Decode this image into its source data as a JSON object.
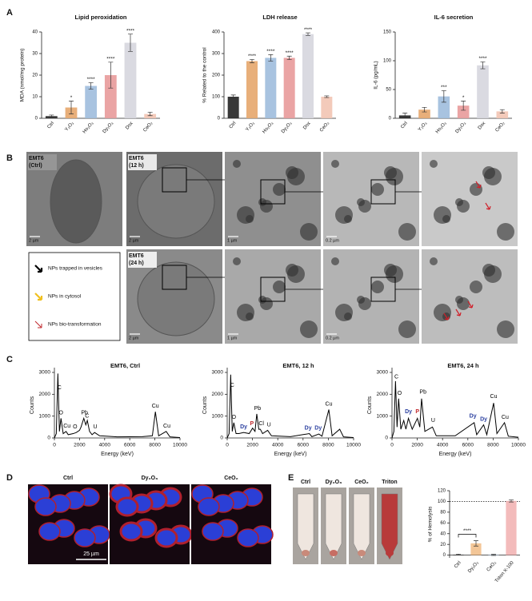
{
  "panel_labels": [
    "A",
    "B",
    "C",
    "D",
    "E"
  ],
  "micrographs": {
    "labels": [
      [
        "EMT6",
        "(Ctrl)"
      ],
      [
        "EMT6",
        "(12 h)"
      ],
      [
        "EMT6",
        "(24 h)"
      ]
    ],
    "scale_bars": [
      "2 µm",
      "2 µm",
      "1 µm",
      "0.2 µm",
      "2 µm",
      "1 µm",
      "0.2 µm"
    ],
    "legend": [
      "NPs trapped in vesicles",
      "NPs in cytosol",
      "NPs bio-transformation"
    ]
  },
  "fluorescence": {
    "labels": [
      "Ctrl",
      "Dy₂O₃",
      "CeO₂"
    ],
    "scale_bar": "25 µm"
  },
  "hemolysis_tubes": {
    "labels": [
      "Ctrl",
      "Dy₂O₃",
      "CeO₂",
      "Triton"
    ]
  },
  "chart_data": [
    {
      "type": "bar",
      "title": "Lipid peroxidation",
      "y_label": "MDA (nmol/mg protein)",
      "categories": [
        "Ctrl",
        "Y₂O₃",
        "Ho₂O₃",
        "Dy₂O₃",
        "Dox",
        "CeO₂"
      ],
      "values": [
        1,
        5,
        15,
        20,
        35,
        2
      ],
      "errors": [
        0.5,
        3,
        1.5,
        6,
        4,
        0.8
      ],
      "significance": [
        null,
        "*",
        "****",
        "****",
        "****",
        null
      ],
      "colors": [
        "#222222",
        "#e6a66c",
        "#9fbcdd",
        "#e89a9a",
        "#d6d6de",
        "#f2c4b3"
      ],
      "ylim": [
        0,
        40
      ],
      "yticks": [
        0,
        10,
        20,
        30,
        40
      ]
    },
    {
      "type": "bar",
      "title": "LDH release",
      "y_label": "% Related to the control",
      "categories": [
        "Ctrl",
        "Y₂O₃",
        "Ho₂O₃",
        "Dy₂O₃",
        "Dox",
        "CeO₂"
      ],
      "values": [
        100,
        265,
        280,
        280,
        390,
        100
      ],
      "errors": [
        8,
        8,
        15,
        8,
        6,
        4
      ],
      "significance": [
        null,
        "****",
        "****",
        "****",
        "****",
        null
      ],
      "colors": [
        "#222222",
        "#e6a66c",
        "#9fbcdd",
        "#e89a9a",
        "#d6d6de",
        "#f2c4b3"
      ],
      "ylim": [
        0,
        400
      ],
      "yticks": [
        0,
        100,
        200,
        300,
        400
      ]
    },
    {
      "type": "bar",
      "title": "IL-6 secretion",
      "y_label": "IL-6 (pg/mL)",
      "categories": [
        "Ctrl",
        "Y₂O₃",
        "Ho₂O₃",
        "Dy₂O₃",
        "Dox",
        "CeO₂"
      ],
      "values": [
        5,
        15,
        38,
        22,
        92,
        12
      ],
      "errors": [
        4,
        4,
        10,
        8,
        6,
        3
      ],
      "significance": [
        null,
        null,
        "***",
        "*",
        "****",
        null
      ],
      "colors": [
        "#222222",
        "#e6a66c",
        "#9fbcdd",
        "#e89a9a",
        "#d6d6de",
        "#f2c4b3"
      ],
      "ylim": [
        0,
        150
      ],
      "yticks": [
        0,
        50,
        100,
        150
      ]
    },
    {
      "type": "line",
      "title": "EMT6, Ctrl",
      "x_label": "Energy (keV)",
      "y_label": "Counts",
      "color": "#000000",
      "x": [
        0,
        150,
        277,
        400,
        525,
        700,
        930,
        1100,
        1500,
        1740,
        2000,
        2120,
        2340,
        2500,
        2620,
        2800,
        3000,
        3200,
        3600,
        5000,
        7000,
        7800,
        8040,
        8300,
        8900,
        9200,
        10000
      ],
      "values": [
        0,
        200,
        2950,
        300,
        900,
        200,
        300,
        150,
        200,
        250,
        350,
        500,
        900,
        600,
        800,
        300,
        150,
        250,
        100,
        50,
        60,
        100,
        1200,
        100,
        300,
        50,
        20
      ],
      "annotations": [
        {
          "text": "C",
          "x": 400,
          "y": 2300,
          "color": "#000000"
        },
        {
          "text": "O",
          "x": 525,
          "y": 1150,
          "color": "#000000"
        },
        {
          "text": "Cu",
          "x": 1000,
          "y": 550,
          "color": "#000000"
        },
        {
          "text": "O",
          "x": 1650,
          "y": 500,
          "color": "#000000"
        },
        {
          "text": "Pb",
          "x": 2400,
          "y": 1150,
          "color": "#000000"
        },
        {
          "text": "C",
          "x": 2600,
          "y": 1000,
          "color": "#000000"
        },
        {
          "text": "U",
          "x": 3250,
          "y": 500,
          "color": "#000000"
        },
        {
          "text": "Cu",
          "x": 8040,
          "y": 1450,
          "color": "#000000"
        },
        {
          "text": "Cu",
          "x": 8950,
          "y": 550,
          "color": "#000000"
        }
      ],
      "xlim": [
        0,
        10000
      ],
      "xticks": [
        0,
        2000,
        4000,
        6000,
        8000,
        10000
      ],
      "ylim": [
        0,
        3000
      ],
      "yticks": [
        0,
        1000,
        2000,
        3000
      ]
    },
    {
      "type": "line",
      "title": "EMT6, 12 h",
      "x_label": "Energy (keV)",
      "y_label": "Counts",
      "color": "#000000",
      "x": [
        0,
        150,
        277,
        400,
        525,
        700,
        930,
        1300,
        1740,
        2010,
        2200,
        2340,
        2500,
        2620,
        2800,
        3200,
        3500,
        5000,
        6500,
        6700,
        7250,
        7500,
        8040,
        8300,
        8900,
        9200,
        10000
      ],
      "values": [
        0,
        200,
        2900,
        300,
        700,
        200,
        200,
        250,
        200,
        450,
        300,
        1100,
        400,
        400,
        200,
        350,
        100,
        60,
        200,
        60,
        180,
        80,
        1300,
        100,
        400,
        50,
        20
      ],
      "annotations": [
        {
          "text": "C",
          "x": 400,
          "y": 2400,
          "color": "#000000"
        },
        {
          "text": "O",
          "x": 525,
          "y": 950,
          "color": "#000000"
        },
        {
          "text": "Dy",
          "x": 1300,
          "y": 500,
          "color": "#2a3f9f"
        },
        {
          "text": "P",
          "x": 1950,
          "y": 650,
          "color": "#c0282d"
        },
        {
          "text": "Pb",
          "x": 2400,
          "y": 1350,
          "color": "#000000"
        },
        {
          "text": "Cl",
          "x": 2700,
          "y": 650,
          "color": "#000000"
        },
        {
          "text": "U",
          "x": 3300,
          "y": 600,
          "color": "#000000"
        },
        {
          "text": "Dy",
          "x": 6400,
          "y": 450,
          "color": "#2a3f9f"
        },
        {
          "text": "Dy",
          "x": 7200,
          "y": 450,
          "color": "#2a3f9f"
        },
        {
          "text": "Cu",
          "x": 8040,
          "y": 1550,
          "color": "#000000"
        }
      ],
      "xlim": [
        0,
        10000
      ],
      "xticks": [
        0,
        2000,
        4000,
        6000,
        8000,
        10000
      ],
      "ylim": [
        0,
        3000
      ],
      "yticks": [
        0,
        1000,
        2000,
        3000
      ]
    },
    {
      "type": "line",
      "title": "EMT6, 24 h",
      "x_label": "Energy (keV)",
      "y_label": "Counts",
      "color": "#000000",
      "x": [
        0,
        150,
        277,
        400,
        525,
        700,
        930,
        1100,
        1300,
        1600,
        2010,
        2200,
        2340,
        2600,
        3200,
        3500,
        5000,
        6500,
        6700,
        7250,
        7500,
        8040,
        8300,
        8900,
        9200,
        10000
      ],
      "values": [
        0,
        300,
        2600,
        500,
        1800,
        400,
        800,
        400,
        900,
        400,
        900,
        500,
        1800,
        300,
        500,
        100,
        100,
        700,
        150,
        600,
        150,
        1600,
        200,
        700,
        80,
        30
      ],
      "annotations": [
        {
          "text": "C",
          "x": 350,
          "y": 2800,
          "color": "#000000"
        },
        {
          "text": "O",
          "x": 600,
          "y": 2050,
          "color": "#000000"
        },
        {
          "text": "Dy",
          "x": 1300,
          "y": 1200,
          "color": "#2a3f9f"
        },
        {
          "text": "P",
          "x": 2010,
          "y": 1200,
          "color": "#c0282d"
        },
        {
          "text": "Pb",
          "x": 2450,
          "y": 2100,
          "color": "#000000"
        },
        {
          "text": "U",
          "x": 3250,
          "y": 800,
          "color": "#000000"
        },
        {
          "text": "Dy",
          "x": 6400,
          "y": 1000,
          "color": "#2a3f9f"
        },
        {
          "text": "Dy",
          "x": 7250,
          "y": 850,
          "color": "#2a3f9f"
        },
        {
          "text": "Cu",
          "x": 8040,
          "y": 1900,
          "color": "#000000"
        },
        {
          "text": "Cu",
          "x": 8950,
          "y": 950,
          "color": "#000000"
        }
      ],
      "xlim": [
        0,
        10000
      ],
      "xticks": [
        0,
        2000,
        4000,
        6000,
        8000,
        10000
      ],
      "ylim": [
        0,
        3000
      ],
      "yticks": [
        0,
        1000,
        2000,
        3000
      ]
    },
    {
      "type": "bar",
      "y_label": "% of Hemolysis",
      "categories": [
        "Ctrl",
        "Dy₂O₃",
        "CeO₂",
        "Triton X-100"
      ],
      "values": [
        1,
        22,
        0.5,
        101
      ],
      "errors": [
        1,
        5,
        1,
        2
      ],
      "significance": [
        null,
        "****",
        null,
        null
      ],
      "colors": [
        "#444444",
        "#f2c08c",
        "#9fbcdd",
        "#f2b4b4"
      ],
      "reference_line": 100,
      "ylim": [
        -5,
        120
      ],
      "yticks": [
        0,
        20,
        40,
        60,
        80,
        100,
        120
      ]
    }
  ]
}
